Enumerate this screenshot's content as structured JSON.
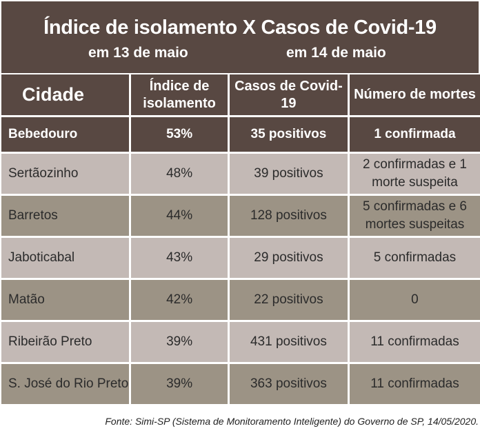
{
  "header": {
    "title": "Índice de isolamento X Casos de Covid-19",
    "subtitle_left": "em 13 de maio",
    "subtitle_right": "em 14 de maio"
  },
  "table": {
    "columns": {
      "city": "Cidade",
      "isolation": "Índice de isolamento",
      "cases": "Casos de Covid-19",
      "deaths": "Número de mortes"
    },
    "rows": [
      {
        "city": "Bebedouro",
        "isolation": "53%",
        "cases": "35 positivos",
        "deaths": "1 confirmada"
      },
      {
        "city": "Sertãozinho",
        "isolation": "48%",
        "cases": "39 positivos",
        "deaths": "2 confirmadas e 1 morte suspeita"
      },
      {
        "city": "Barretos",
        "isolation": "44%",
        "cases": "128 positivos",
        "deaths": "5 confirmadas e 6 mortes suspeitas"
      },
      {
        "city": "Jaboticabal",
        "isolation": "43%",
        "cases": "29 positivos",
        "deaths": "5 confirmadas"
      },
      {
        "city": "Matão",
        "isolation": "42%",
        "cases": "22 positivos",
        "deaths": "0"
      },
      {
        "city": "Ribeirão Preto",
        "isolation": "39%",
        "cases": "431 positivos",
        "deaths": "11 confirmadas"
      },
      {
        "city": "S. José do Rio Preto",
        "isolation": "39%",
        "cases": "363 positivos",
        "deaths": "11 confirmadas"
      }
    ]
  },
  "source": "Fonte: Simi-SP (Sistema de Monitoramento Inteligente) do Governo de SP, 14/05/2020.",
  "colors": {
    "header_bg": "#584842",
    "row_light": "#c3b9b5",
    "row_dark": "#9c9385"
  }
}
